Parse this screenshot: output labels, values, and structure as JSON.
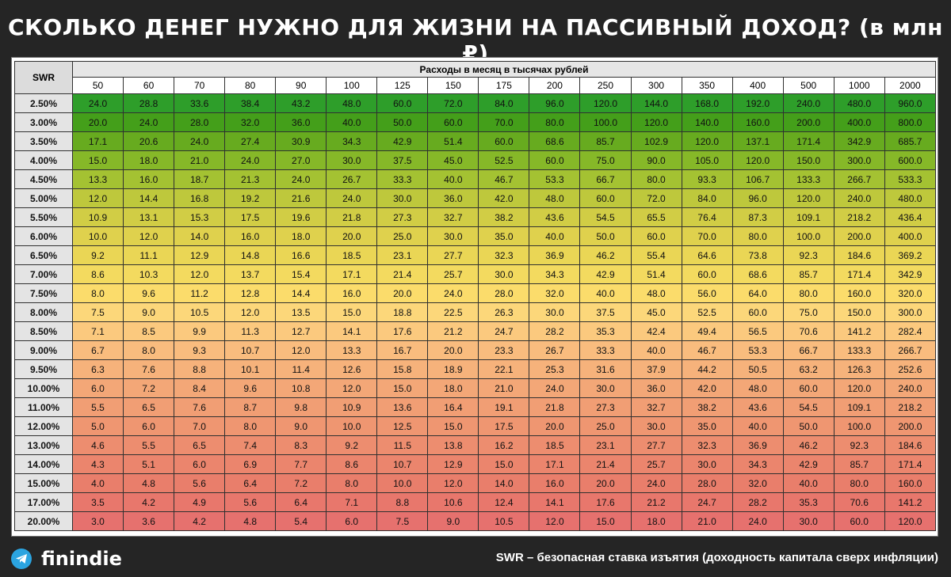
{
  "header": {
    "title": "СКОЛЬКО ДЕНЕГ НУЖНО ДЛЯ ЖИЗНИ НА ПАССИВНЫЙ ДОХОД? (в млн ₽)"
  },
  "table": {
    "corner_label": "SWR",
    "group_label": "Расходы в месяц в тысячах рублей",
    "columns": [
      "50",
      "60",
      "70",
      "80",
      "90",
      "100",
      "125",
      "150",
      "175",
      "200",
      "250",
      "300",
      "350",
      "400",
      "500",
      "1000",
      "2000"
    ],
    "rows": [
      {
        "swr": "2.50%",
        "values": [
          "24.0",
          "28.8",
          "33.6",
          "38.4",
          "43.2",
          "48.0",
          "60.0",
          "72.0",
          "84.0",
          "96.0",
          "120.0",
          "144.0",
          "168.0",
          "192.0",
          "240.0",
          "480.0",
          "960.0"
        ]
      },
      {
        "swr": "3.00%",
        "values": [
          "20.0",
          "24.0",
          "28.0",
          "32.0",
          "36.0",
          "40.0",
          "50.0",
          "60.0",
          "70.0",
          "80.0",
          "100.0",
          "120.0",
          "140.0",
          "160.0",
          "200.0",
          "400.0",
          "800.0"
        ]
      },
      {
        "swr": "3.50%",
        "values": [
          "17.1",
          "20.6",
          "24.0",
          "27.4",
          "30.9",
          "34.3",
          "42.9",
          "51.4",
          "60.0",
          "68.6",
          "85.7",
          "102.9",
          "120.0",
          "137.1",
          "171.4",
          "342.9",
          "685.7"
        ]
      },
      {
        "swr": "4.00%",
        "values": [
          "15.0",
          "18.0",
          "21.0",
          "24.0",
          "27.0",
          "30.0",
          "37.5",
          "45.0",
          "52.5",
          "60.0",
          "75.0",
          "90.0",
          "105.0",
          "120.0",
          "150.0",
          "300.0",
          "600.0"
        ]
      },
      {
        "swr": "4.50%",
        "values": [
          "13.3",
          "16.0",
          "18.7",
          "21.3",
          "24.0",
          "26.7",
          "33.3",
          "40.0",
          "46.7",
          "53.3",
          "66.7",
          "80.0",
          "93.3",
          "106.7",
          "133.3",
          "266.7",
          "533.3"
        ]
      },
      {
        "swr": "5.00%",
        "values": [
          "12.0",
          "14.4",
          "16.8",
          "19.2",
          "21.6",
          "24.0",
          "30.0",
          "36.0",
          "42.0",
          "48.0",
          "60.0",
          "72.0",
          "84.0",
          "96.0",
          "120.0",
          "240.0",
          "480.0"
        ]
      },
      {
        "swr": "5.50%",
        "values": [
          "10.9",
          "13.1",
          "15.3",
          "17.5",
          "19.6",
          "21.8",
          "27.3",
          "32.7",
          "38.2",
          "43.6",
          "54.5",
          "65.5",
          "76.4",
          "87.3",
          "109.1",
          "218.2",
          "436.4"
        ]
      },
      {
        "swr": "6.00%",
        "values": [
          "10.0",
          "12.0",
          "14.0",
          "16.0",
          "18.0",
          "20.0",
          "25.0",
          "30.0",
          "35.0",
          "40.0",
          "50.0",
          "60.0",
          "70.0",
          "80.0",
          "100.0",
          "200.0",
          "400.0"
        ]
      },
      {
        "swr": "6.50%",
        "values": [
          "9.2",
          "11.1",
          "12.9",
          "14.8",
          "16.6",
          "18.5",
          "23.1",
          "27.7",
          "32.3",
          "36.9",
          "46.2",
          "55.4",
          "64.6",
          "73.8",
          "92.3",
          "184.6",
          "369.2"
        ]
      },
      {
        "swr": "7.00%",
        "values": [
          "8.6",
          "10.3",
          "12.0",
          "13.7",
          "15.4",
          "17.1",
          "21.4",
          "25.7",
          "30.0",
          "34.3",
          "42.9",
          "51.4",
          "60.0",
          "68.6",
          "85.7",
          "171.4",
          "342.9"
        ]
      },
      {
        "swr": "7.50%",
        "values": [
          "8.0",
          "9.6",
          "11.2",
          "12.8",
          "14.4",
          "16.0",
          "20.0",
          "24.0",
          "28.0",
          "32.0",
          "40.0",
          "48.0",
          "56.0",
          "64.0",
          "80.0",
          "160.0",
          "320.0"
        ]
      },
      {
        "swr": "8.00%",
        "values": [
          "7.5",
          "9.0",
          "10.5",
          "12.0",
          "13.5",
          "15.0",
          "18.8",
          "22.5",
          "26.3",
          "30.0",
          "37.5",
          "45.0",
          "52.5",
          "60.0",
          "75.0",
          "150.0",
          "300.0"
        ]
      },
      {
        "swr": "8.50%",
        "values": [
          "7.1",
          "8.5",
          "9.9",
          "11.3",
          "12.7",
          "14.1",
          "17.6",
          "21.2",
          "24.7",
          "28.2",
          "35.3",
          "42.4",
          "49.4",
          "56.5",
          "70.6",
          "141.2",
          "282.4"
        ]
      },
      {
        "swr": "9.00%",
        "values": [
          "6.7",
          "8.0",
          "9.3",
          "10.7",
          "12.0",
          "13.3",
          "16.7",
          "20.0",
          "23.3",
          "26.7",
          "33.3",
          "40.0",
          "46.7",
          "53.3",
          "66.7",
          "133.3",
          "266.7"
        ]
      },
      {
        "swr": "9.50%",
        "values": [
          "6.3",
          "7.6",
          "8.8",
          "10.1",
          "11.4",
          "12.6",
          "15.8",
          "18.9",
          "22.1",
          "25.3",
          "31.6",
          "37.9",
          "44.2",
          "50.5",
          "63.2",
          "126.3",
          "252.6"
        ]
      },
      {
        "swr": "10.00%",
        "values": [
          "6.0",
          "7.2",
          "8.4",
          "9.6",
          "10.8",
          "12.0",
          "15.0",
          "18.0",
          "21.0",
          "24.0",
          "30.0",
          "36.0",
          "42.0",
          "48.0",
          "60.0",
          "120.0",
          "240.0"
        ]
      },
      {
        "swr": "11.00%",
        "values": [
          "5.5",
          "6.5",
          "7.6",
          "8.7",
          "9.8",
          "10.9",
          "13.6",
          "16.4",
          "19.1",
          "21.8",
          "27.3",
          "32.7",
          "38.2",
          "43.6",
          "54.5",
          "109.1",
          "218.2"
        ]
      },
      {
        "swr": "12.00%",
        "values": [
          "5.0",
          "6.0",
          "7.0",
          "8.0",
          "9.0",
          "10.0",
          "12.5",
          "15.0",
          "17.5",
          "20.0",
          "25.0",
          "30.0",
          "35.0",
          "40.0",
          "50.0",
          "100.0",
          "200.0"
        ]
      },
      {
        "swr": "13.00%",
        "values": [
          "4.6",
          "5.5",
          "6.5",
          "7.4",
          "8.3",
          "9.2",
          "11.5",
          "13.8",
          "16.2",
          "18.5",
          "23.1",
          "27.7",
          "32.3",
          "36.9",
          "46.2",
          "92.3",
          "184.6"
        ]
      },
      {
        "swr": "14.00%",
        "values": [
          "4.3",
          "5.1",
          "6.0",
          "6.9",
          "7.7",
          "8.6",
          "10.7",
          "12.9",
          "15.0",
          "17.1",
          "21.4",
          "25.7",
          "30.0",
          "34.3",
          "42.9",
          "85.7",
          "171.4"
        ]
      },
      {
        "swr": "15.00%",
        "values": [
          "4.0",
          "4.8",
          "5.6",
          "6.4",
          "7.2",
          "8.0",
          "10.0",
          "12.0",
          "14.0",
          "16.0",
          "20.0",
          "24.0",
          "28.0",
          "32.0",
          "40.0",
          "80.0",
          "160.0"
        ]
      },
      {
        "swr": "17.00%",
        "values": [
          "3.5",
          "4.2",
          "4.9",
          "5.6",
          "6.4",
          "7.1",
          "8.8",
          "10.6",
          "12.4",
          "14.1",
          "17.6",
          "21.2",
          "24.7",
          "28.2",
          "35.3",
          "70.6",
          "141.2"
        ]
      },
      {
        "swr": "20.00%",
        "values": [
          "3.0",
          "3.6",
          "4.2",
          "4.8",
          "5.4",
          "6.0",
          "7.5",
          "9.0",
          "10.5",
          "12.0",
          "15.0",
          "18.0",
          "21.0",
          "24.0",
          "30.0",
          "60.0",
          "120.0"
        ]
      }
    ],
    "row_colors": [
      "#2e9e2a",
      "#449f1a",
      "#67ab1f",
      "#86b828",
      "#a4c232",
      "#bec83c",
      "#d1cd45",
      "#dfd14d",
      "#ead655",
      "#f3da5f",
      "#fbdc6b",
      "#fcd77a",
      "#fbc97e",
      "#f9bc7e",
      "#f6b27b",
      "#f3a777",
      "#f19e74",
      "#ef9671",
      "#ed8d6f",
      "#eb856d",
      "#e97e6b",
      "#e8776c",
      "#e6716e"
    ]
  },
  "footer": {
    "icon": "telegram-icon",
    "brand": "finindie",
    "note": "SWR – безопасная ставка изъятия (доходность капитала сверх инфляции)"
  }
}
